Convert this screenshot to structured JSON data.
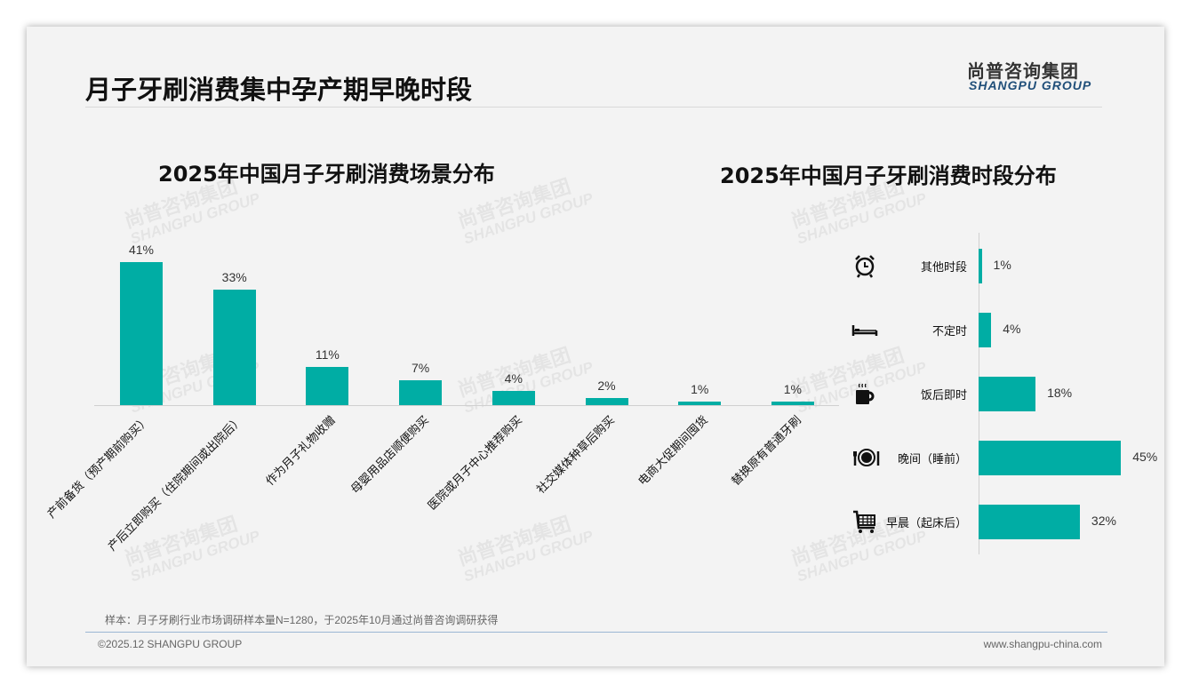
{
  "header": {
    "title": "月子牙刷消费集中孕产期早晚时段",
    "logo_cn": "尚普咨询集团",
    "logo_en": "SHANGPU GROUP"
  },
  "watermark": {
    "cn": "尚普咨询集团",
    "en": "SHANGPU GROUP"
  },
  "chart_data": [
    {
      "type": "bar",
      "title": "2025年中国月子牙刷消费场景分布",
      "categories": [
        "产前备货（预产期前购买）",
        "产后立即购买（住院期间或出院后）",
        "作为月子礼物收赠",
        "母婴用品店顺便购买",
        "医院或月子中心推荐购买",
        "社交媒体种草后购买",
        "电商大促期间囤货",
        "替换原有普通牙刷"
      ],
      "values": [
        41,
        33,
        11,
        7,
        4,
        2,
        1,
        1
      ],
      "labels": [
        "41%",
        "33%",
        "11%",
        "7%",
        "4%",
        "2%",
        "1%",
        "1%"
      ],
      "unit": "%",
      "color": "#00ada4"
    },
    {
      "type": "bar",
      "orientation": "horizontal",
      "title": "2025年中国月子牙刷消费时段分布",
      "categories": [
        "其他时段",
        "不定时",
        "饭后即时",
        "晚间（睡前）",
        "早晨（起床后）"
      ],
      "values": [
        1,
        4,
        18,
        45,
        32
      ],
      "labels": [
        "1%",
        "4%",
        "18%",
        "45%",
        "32%"
      ],
      "icons": [
        "alarm-clock-icon",
        "bed-icon",
        "hot-cup-icon",
        "dinner-plate-icon",
        "shopping-cart-icon"
      ],
      "unit": "%",
      "color": "#00ada4"
    }
  ],
  "footer": {
    "note": "样本：月子牙刷行业市场调研样本量N=1280，于2025年10月通过尚普咨询调研获得",
    "copyright": "©2025.12 SHANGPU GROUP",
    "website": "www.shangpu-china.com"
  }
}
